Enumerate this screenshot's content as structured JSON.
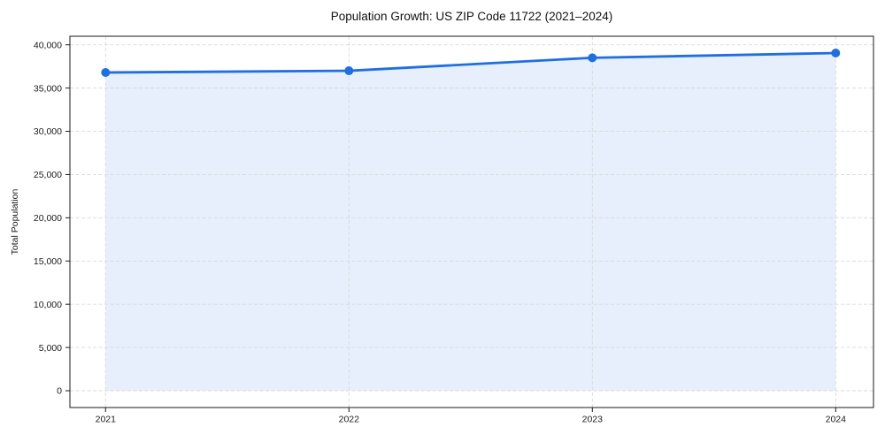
{
  "chart_data": {
    "type": "area",
    "title": "Population Growth: US ZIP Code 11722 (2021–2024)",
    "xlabel": "",
    "ylabel": "Total Population",
    "x": [
      "2021",
      "2022",
      "2023",
      "2024"
    ],
    "series": [
      {
        "name": "Total Population",
        "values": [
          36800,
          37000,
          38500,
          39050
        ]
      }
    ],
    "ylim": [
      0,
      40000
    ],
    "yticks": [
      0,
      5000,
      10000,
      15000,
      20000,
      25000,
      30000,
      35000,
      40000
    ],
    "xticks": [
      "2021",
      "2022",
      "2023",
      "2024"
    ],
    "grid": true,
    "grid_style": "dashed",
    "legend": false,
    "colors": {
      "line": "#1f6fe0",
      "marker": "#1f6fe0",
      "fill": "#e7effc",
      "grid": "#d9d9d9",
      "spine": "#1a1a1a",
      "text": "#1a1a1a"
    }
  }
}
